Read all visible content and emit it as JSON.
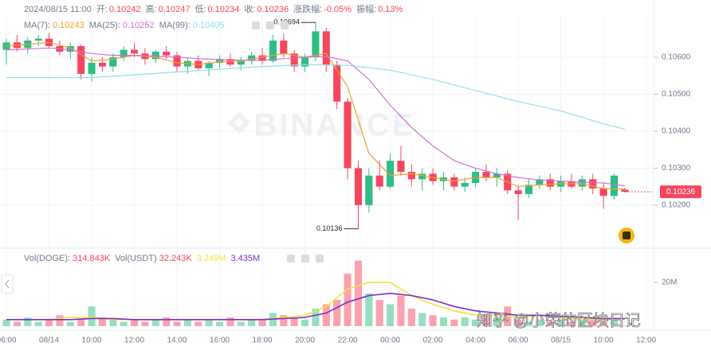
{
  "chart_data": {
    "type": "candlestick",
    "header": {
      "time": "2024/08/15 11:00",
      "fields": [
        {
          "label": "开:",
          "value": "0.10242"
        },
        {
          "label": "高:",
          "value": "0.10247"
        },
        {
          "label": "低:",
          "value": "0.10234"
        },
        {
          "label": "收:",
          "value": "0.10236"
        },
        {
          "label": "涨跌幅:",
          "value": "-0.05%"
        },
        {
          "label": "振幅:",
          "value": "0.13%"
        }
      ]
    },
    "colors": {
      "up": "#2ebd85",
      "down": "#f6465d"
    },
    "x": [
      "08/14 06:00",
      "08/14 06:30",
      "08/14 07:00",
      "08/14 07:30",
      "08/14 08:00",
      "08/14 08:30",
      "08/14 09:00",
      "08/14 09:30",
      "08/14 10:00",
      "08/14 10:30",
      "08/14 11:00",
      "08/14 11:30",
      "08/14 12:00",
      "08/14 12:30",
      "08/14 13:00",
      "08/14 13:30",
      "08/14 14:00",
      "08/14 14:30",
      "08/14 15:00",
      "08/14 15:30",
      "08/14 16:00",
      "08/14 16:30",
      "08/14 17:00",
      "08/14 17:30",
      "08/14 18:00",
      "08/14 18:30",
      "08/14 19:00",
      "08/14 19:30",
      "08/14 20:00",
      "08/14 20:30",
      "08/14 21:00",
      "08/14 21:30",
      "08/14 22:00",
      "08/14 22:30",
      "08/14 23:00",
      "08/14 23:30",
      "08/15 00:00",
      "08/15 00:30",
      "08/15 01:00",
      "08/15 01:30",
      "08/15 02:00",
      "08/15 02:30",
      "08/15 03:00",
      "08/15 03:30",
      "08/15 04:00",
      "08/15 04:30",
      "08/15 05:00",
      "08/15 05:30",
      "08/15 06:00",
      "08/15 06:30",
      "08/15 07:00",
      "08/15 07:30",
      "08/15 08:00",
      "08/15 08:30",
      "08/15 09:00",
      "08/15 09:30",
      "08/15 10:00",
      "08/15 10:30",
      "08/15 11:00"
    ],
    "ohlc": [
      [
        0.1062,
        0.1065,
        0.1058,
        0.1064
      ],
      [
        0.1064,
        0.1066,
        0.10615,
        0.10625
      ],
      [
        0.10625,
        0.10655,
        0.1061,
        0.10645
      ],
      [
        0.10645,
        0.1066,
        0.1063,
        0.1065
      ],
      [
        0.1065,
        0.10665,
        0.10625,
        0.1063
      ],
      [
        0.1063,
        0.10645,
        0.10605,
        0.10615
      ],
      [
        0.10615,
        0.1064,
        0.10595,
        0.1063
      ],
      [
        0.1063,
        0.10635,
        0.1054,
        0.10555
      ],
      [
        0.10555,
        0.106,
        0.10535,
        0.10585
      ],
      [
        0.10585,
        0.106,
        0.1056,
        0.10575
      ],
      [
        0.10575,
        0.1061,
        0.1056,
        0.106
      ],
      [
        0.106,
        0.1063,
        0.1059,
        0.1062
      ],
      [
        0.1062,
        0.1064,
        0.106,
        0.1061
      ],
      [
        0.1061,
        0.10625,
        0.1058,
        0.10595
      ],
      [
        0.10595,
        0.1062,
        0.10585,
        0.10615
      ],
      [
        0.10615,
        0.1063,
        0.10595,
        0.10605
      ],
      [
        0.10605,
        0.10615,
        0.1056,
        0.10575
      ],
      [
        0.10575,
        0.106,
        0.10555,
        0.1059
      ],
      [
        0.1059,
        0.10605,
        0.10565,
        0.1057
      ],
      [
        0.1057,
        0.1059,
        0.1055,
        0.10585
      ],
      [
        0.10585,
        0.10605,
        0.1057,
        0.10595
      ],
      [
        0.10595,
        0.1061,
        0.10575,
        0.1058
      ],
      [
        0.1058,
        0.106,
        0.10565,
        0.1059
      ],
      [
        0.1059,
        0.10615,
        0.1058,
        0.10605
      ],
      [
        0.10605,
        0.10625,
        0.1058,
        0.1059
      ],
      [
        0.1059,
        0.1066,
        0.10585,
        0.10645
      ],
      [
        0.10645,
        0.10665,
        0.106,
        0.1061
      ],
      [
        0.1061,
        0.1062,
        0.1056,
        0.10575
      ],
      [
        0.10575,
        0.1061,
        0.1056,
        0.106
      ],
      [
        0.106,
        0.10694,
        0.1059,
        0.1067
      ],
      [
        0.1067,
        0.1068,
        0.1056,
        0.1058
      ],
      [
        0.1058,
        0.1059,
        0.1046,
        0.1048
      ],
      [
        0.1048,
        0.1049,
        0.1027,
        0.103
      ],
      [
        0.103,
        0.1032,
        0.10136,
        0.102
      ],
      [
        0.102,
        0.103,
        0.1018,
        0.1028
      ],
      [
        0.1028,
        0.1032,
        0.1024,
        0.1025
      ],
      [
        0.1025,
        0.1034,
        0.10245,
        0.1032
      ],
      [
        0.1032,
        0.1036,
        0.1028,
        0.1029
      ],
      [
        0.1029,
        0.1031,
        0.1025,
        0.1027
      ],
      [
        0.1027,
        0.103,
        0.1024,
        0.10285
      ],
      [
        0.10285,
        0.103,
        0.10255,
        0.10265
      ],
      [
        0.10265,
        0.1029,
        0.1024,
        0.10275
      ],
      [
        0.10275,
        0.10285,
        0.1024,
        0.1025
      ],
      [
        0.1025,
        0.10275,
        0.10235,
        0.1026
      ],
      [
        0.1026,
        0.103,
        0.1025,
        0.1029
      ],
      [
        0.1029,
        0.1031,
        0.10265,
        0.10275
      ],
      [
        0.10275,
        0.103,
        0.1025,
        0.10285
      ],
      [
        0.10285,
        0.10295,
        0.1023,
        0.1024
      ],
      [
        0.1024,
        0.10255,
        0.1016,
        0.1023
      ],
      [
        0.1023,
        0.1027,
        0.1022,
        0.10255
      ],
      [
        0.10255,
        0.1028,
        0.10245,
        0.1027
      ],
      [
        0.1027,
        0.10285,
        0.1024,
        0.1025
      ],
      [
        0.1025,
        0.1028,
        0.10235,
        0.10265
      ],
      [
        0.10265,
        0.10285,
        0.10245,
        0.1025
      ],
      [
        0.1025,
        0.1028,
        0.1024,
        0.1027
      ],
      [
        0.1027,
        0.10285,
        0.1023,
        0.10245
      ],
      [
        0.10245,
        0.1026,
        0.1019,
        0.10225
      ],
      [
        0.10225,
        0.10285,
        0.10215,
        0.1028
      ],
      [
        0.10242,
        0.10247,
        0.10234,
        0.10236
      ]
    ],
    "xlim": [
      "08/14 05:42",
      "08/15 12:21"
    ],
    "xticks": [
      {
        "value": "08/14 06:00",
        "label": "06:00"
      },
      {
        "value": "08/14 08:00",
        "label": "08/14"
      },
      {
        "value": "08/14 10:00",
        "label": "10:00"
      },
      {
        "value": "08/14 12:00",
        "label": "12:00"
      },
      {
        "value": "08/14 14:00",
        "label": "14:00"
      },
      {
        "value": "08/14 16:00",
        "label": "16:00"
      },
      {
        "value": "08/14 18:00",
        "label": "18:00"
      },
      {
        "value": "08/14 20:00",
        "label": "20:00"
      },
      {
        "value": "08/14 22:00",
        "label": "22:00"
      },
      {
        "value": "08/15 00:00",
        "label": "00:00"
      },
      {
        "value": "08/15 02:00",
        "label": "02:00"
      },
      {
        "value": "08/15 04:00",
        "label": "04:00"
      },
      {
        "value": "08/15 06:00",
        "label": "06:00"
      },
      {
        "value": "08/15 08:00",
        "label": "08/15"
      },
      {
        "value": "08/15 10:00",
        "label": "10:00"
      },
      {
        "value": "08/15 12:00",
        "label": "12:00"
      }
    ],
    "ylim": [
      0.10088,
      0.10716
    ],
    "yticks": [
      {
        "value": 0.106,
        "label": "0.10600"
      },
      {
        "value": 0.105,
        "label": "0.10500"
      },
      {
        "value": 0.104,
        "label": "0.10400"
      },
      {
        "value": 0.103,
        "label": "0.10300"
      },
      {
        "value": 0.102,
        "label": "0.10200"
      }
    ],
    "grid": true,
    "lines": [
      {
        "name": "MA(7):",
        "color": "#f0a030",
        "last": 0.10243,
        "x": [
          "08/14 06:00",
          "08/14 07:00",
          "08/14 08:00",
          "08/14 09:00",
          "08/14 10:00",
          "08/14 11:00",
          "08/14 12:00",
          "08/14 13:00",
          "08/14 14:00",
          "08/14 15:00",
          "08/14 16:00",
          "08/14 17:00",
          "08/14 18:00",
          "08/14 19:00",
          "08/14 20:00",
          "08/14 21:00",
          "08/14 22:00",
          "08/14 23:00",
          "08/15 00:00",
          "08/15 01:00",
          "08/15 02:00",
          "08/15 03:00",
          "08/15 04:00",
          "08/15 05:00",
          "08/15 06:00",
          "08/15 07:00",
          "08/15 08:00",
          "08/15 09:00",
          "08/15 10:00",
          "08/15 11:00"
        ],
        "values": [
          0.1063,
          0.10635,
          0.1064,
          0.10625,
          0.1059,
          0.10595,
          0.10605,
          0.106,
          0.10585,
          0.1058,
          0.10588,
          0.1059,
          0.106,
          0.1061,
          0.106,
          0.1061,
          0.1052,
          0.1034,
          0.1028,
          0.10285,
          0.10275,
          0.10265,
          0.10275,
          0.10275,
          0.1025,
          0.10255,
          0.10258,
          0.10258,
          0.10245,
          0.10243
        ]
      },
      {
        "name": "MA(25):",
        "color": "#d36fdc",
        "last": 0.10252,
        "x": [
          "08/14 06:00",
          "08/14 07:00",
          "08/14 08:00",
          "08/14 09:00",
          "08/14 10:00",
          "08/14 11:00",
          "08/14 12:00",
          "08/14 13:00",
          "08/14 14:00",
          "08/14 15:00",
          "08/14 16:00",
          "08/14 17:00",
          "08/14 18:00",
          "08/14 19:00",
          "08/14 20:00",
          "08/14 21:00",
          "08/14 22:00",
          "08/14 23:00",
          "08/15 00:00",
          "08/15 01:00",
          "08/15 02:00",
          "08/15 03:00",
          "08/15 04:00",
          "08/15 05:00",
          "08/15 06:00",
          "08/15 07:00",
          "08/15 08:00",
          "08/15 09:00",
          "08/15 10:00",
          "08/15 11:00"
        ],
        "values": [
          0.1062,
          0.10622,
          0.10625,
          0.1062,
          0.1061,
          0.10605,
          0.10605,
          0.10603,
          0.106,
          0.10596,
          0.10594,
          0.10592,
          0.10592,
          0.10596,
          0.106,
          0.10602,
          0.1059,
          0.1054,
          0.1047,
          0.1041,
          0.1036,
          0.1032,
          0.103,
          0.10285,
          0.10275,
          0.10268,
          0.10265,
          0.10262,
          0.1026,
          0.10252
        ]
      },
      {
        "name": "MA(99):",
        "color": "#8fe0ea",
        "last": 0.10405,
        "x": [
          "08/14 06:00",
          "08/14 10:00",
          "08/14 14:00",
          "08/14 18:00",
          "08/14 20:00",
          "08/14 22:00",
          "08/15 00:00",
          "08/15 02:00",
          "08/15 04:00",
          "08/15 06:00",
          "08/15 08:00",
          "08/15 10:00",
          "08/15 11:00"
        ],
        "values": [
          0.10545,
          0.10545,
          0.1056,
          0.10575,
          0.1058,
          0.10578,
          0.10565,
          0.1054,
          0.1051,
          0.1048,
          0.10455,
          0.1042,
          0.10405
        ]
      }
    ],
    "annotations": [
      {
        "x": "08/14 20:30",
        "value": 0.10694
      },
      {
        "x": "08/14 22:30",
        "value": 0.10136
      }
    ],
    "last_price": 0.10236,
    "watermarks": [
      "BINANCE",
      "知乎 @小荣的区块日记"
    ],
    "volume": {
      "type": "bar",
      "legend": [
        {
          "label": "Vol(DOGE):",
          "value": "314.843K"
        },
        {
          "label": "Vol(USDT)",
          "value": "32.243K"
        }
      ],
      "values": [
        3,
        2,
        4,
        2,
        3,
        5,
        2,
        3,
        9,
        4,
        3,
        2,
        3,
        2,
        3,
        4,
        2,
        3,
        2,
        3,
        2,
        4,
        2,
        3,
        3,
        6,
        5,
        4,
        3,
        8,
        10,
        12,
        24,
        30,
        15,
        12,
        10,
        14,
        8,
        6,
        5,
        4,
        3,
        4,
        3,
        5,
        4,
        9,
        3,
        2,
        3,
        2,
        3,
        2,
        3,
        4,
        2,
        3,
        0.314843
      ],
      "ylim": [
        0,
        33.5
      ],
      "yticks": [
        {
          "value": 20,
          "label": "20M"
        }
      ],
      "lines": [
        {
          "color": "#f2e23a",
          "last_label": "3.249M",
          "x": [
            "08/14 06:00",
            "08/14 07:00",
            "08/14 08:00",
            "08/14 09:00",
            "08/14 10:00",
            "08/14 11:00",
            "08/14 12:00",
            "08/14 13:00",
            "08/14 14:00",
            "08/14 15:00",
            "08/14 16:00",
            "08/14 17:00",
            "08/14 18:00",
            "08/14 19:00",
            "08/14 20:00",
            "08/14 21:00",
            "08/14 22:00",
            "08/14 23:00",
            "08/15 00:00",
            "08/15 01:00",
            "08/15 02:00",
            "08/15 03:00",
            "08/15 04:00",
            "08/15 05:00",
            "08/15 06:00",
            "08/15 07:00",
            "08/15 08:00",
            "08/15 09:00",
            "08/15 10:00",
            "08/15 11:00"
          ],
          "values": [
            3,
            3,
            3,
            4,
            4,
            3,
            3,
            3,
            3,
            3,
            3,
            3,
            3,
            4,
            5,
            9,
            17,
            20,
            20,
            14,
            10,
            7,
            5,
            5,
            4,
            5,
            4,
            3,
            3,
            3.249
          ]
        },
        {
          "color": "#7b2fc4",
          "last_label": "3.435M",
          "x": [
            "08/14 06:00",
            "08/14 07:00",
            "08/14 08:00",
            "08/14 09:00",
            "08/14 10:00",
            "08/14 11:00",
            "08/14 12:00",
            "08/14 13:00",
            "08/14 14:00",
            "08/14 15:00",
            "08/14 16:00",
            "08/14 17:00",
            "08/14 18:00",
            "08/14 19:00",
            "08/14 20:00",
            "08/14 21:00",
            "08/14 22:00",
            "08/14 23:00",
            "08/15 00:00",
            "08/15 01:00",
            "08/15 02:00",
            "08/15 03:00",
            "08/15 04:00",
            "08/15 05:00",
            "08/15 06:00",
            "08/15 07:00",
            "08/15 08:00",
            "08/15 09:00",
            "08/15 10:00",
            "08/15 11:00"
          ],
          "values": [
            3,
            3,
            3,
            3,
            3.5,
            3.5,
            3,
            3,
            3,
            3,
            3,
            3,
            3,
            3.5,
            4,
            6,
            11,
            14,
            15,
            14,
            12,
            9,
            7,
            6,
            5,
            5,
            4.5,
            4,
            3.5,
            3.435
          ]
        }
      ]
    }
  }
}
